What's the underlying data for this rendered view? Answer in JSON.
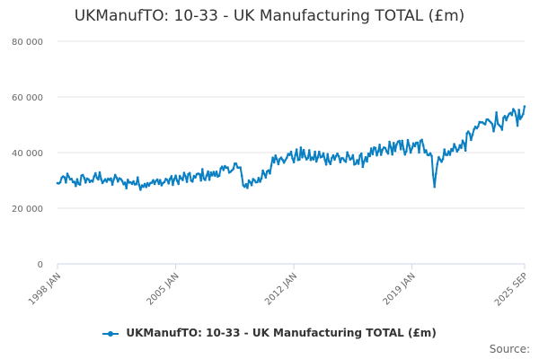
{
  "chart_data": {
    "type": "line",
    "title": "UKManufTO: 10-33 - UK Manufacturing TOTAL (£m)",
    "xlabel": "",
    "ylabel": "",
    "ylim": [
      0,
      80000
    ],
    "yticks": [
      {
        "value": 0,
        "label": "0"
      },
      {
        "value": 20000,
        "label": "20 000"
      },
      {
        "value": 40000,
        "label": "40 000"
      },
      {
        "value": 60000,
        "label": "60 000"
      },
      {
        "value": 80000,
        "label": "80 000"
      }
    ],
    "xlim": [
      1998.0,
      2025.67
    ],
    "xticks": [
      {
        "value": 1998.0,
        "label": "1998 JAN"
      },
      {
        "value": 2005.0,
        "label": "2005 JAN"
      },
      {
        "value": 2012.0,
        "label": "2012 JAN"
      },
      {
        "value": 2019.0,
        "label": "2019 JAN"
      },
      {
        "value": 2025.67,
        "label": "2025 SEP"
      }
    ],
    "grid": true,
    "legend_position": "bottom",
    "series": [
      {
        "name": "UKManufTO: 10-33 - UK Manufacturing TOTAL (£m)",
        "color": "#0a7fc2",
        "points": [
          [
            1998.0,
            28500
          ],
          [
            1998.5,
            31000
          ],
          [
            1999.0,
            29000
          ],
          [
            1999.5,
            30500
          ],
          [
            2000.0,
            30000
          ],
          [
            2000.5,
            31500
          ],
          [
            2001.0,
            29500
          ],
          [
            2001.5,
            30500
          ],
          [
            2002.0,
            29000
          ],
          [
            2002.5,
            29500
          ],
          [
            2003.0,
            28500
          ],
          [
            2003.5,
            29500
          ],
          [
            2004.0,
            29000
          ],
          [
            2004.5,
            30000
          ],
          [
            2005.0,
            30000
          ],
          [
            2005.5,
            31000
          ],
          [
            2006.0,
            30500
          ],
          [
            2006.5,
            32000
          ],
          [
            2007.0,
            31500
          ],
          [
            2007.5,
            33000
          ],
          [
            2008.0,
            33500
          ],
          [
            2008.5,
            35000
          ],
          [
            2008.8,
            34500
          ],
          [
            2009.0,
            28000
          ],
          [
            2009.5,
            29500
          ],
          [
            2010.0,
            31000
          ],
          [
            2010.5,
            32000
          ],
          [
            2010.8,
            38500
          ],
          [
            2011.0,
            37500
          ],
          [
            2011.5,
            39000
          ],
          [
            2012.0,
            38500
          ],
          [
            2012.5,
            39500
          ],
          [
            2013.0,
            38000
          ],
          [
            2013.5,
            38500
          ],
          [
            2014.0,
            38000
          ],
          [
            2014.5,
            38500
          ],
          [
            2015.0,
            37500
          ],
          [
            2015.5,
            37500
          ],
          [
            2016.0,
            37000
          ],
          [
            2016.5,
            39000
          ],
          [
            2017.0,
            40000
          ],
          [
            2017.5,
            41000
          ],
          [
            2018.0,
            42000
          ],
          [
            2018.5,
            42000
          ],
          [
            2019.0,
            41500
          ],
          [
            2019.5,
            42500
          ],
          [
            2020.0,
            41000
          ],
          [
            2020.2,
            38000
          ],
          [
            2020.3,
            27500
          ],
          [
            2020.5,
            36000
          ],
          [
            2020.8,
            39500
          ],
          [
            2021.0,
            39000
          ],
          [
            2021.5,
            41500
          ],
          [
            2022.0,
            42500
          ],
          [
            2022.5,
            46500
          ],
          [
            2023.0,
            49500
          ],
          [
            2023.5,
            51000
          ],
          [
            2024.0,
            51500
          ],
          [
            2024.5,
            50500
          ],
          [
            2025.0,
            53000
          ],
          [
            2025.3,
            52500
          ],
          [
            2025.67,
            53500
          ]
        ]
      }
    ]
  },
  "legend": {
    "label": "UKManufTO: 10-33 - UK Manufacturing TOTAL (£m)"
  },
  "footer": {
    "source": "Source:"
  }
}
